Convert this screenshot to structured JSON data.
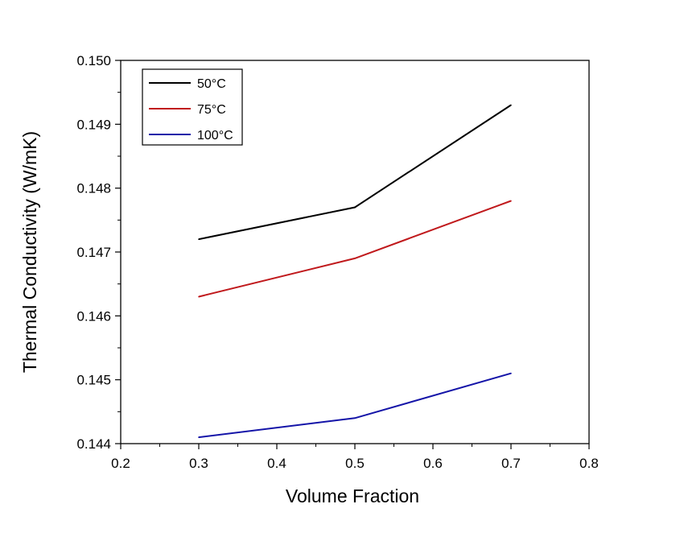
{
  "chart_data": {
    "type": "line",
    "title": "",
    "xlabel": "Volume Fraction",
    "ylabel": "Thermal Conductivity (W/mK)",
    "xlim": [
      0.2,
      0.8
    ],
    "ylim": [
      0.144,
      0.15
    ],
    "x_ticks": [
      "0.2",
      "0.3",
      "0.4",
      "0.5",
      "0.6",
      "0.7",
      "0.8"
    ],
    "y_ticks": [
      "0.144",
      "0.145",
      "0.146",
      "0.147",
      "0.148",
      "0.149",
      "0.150"
    ],
    "x": [
      0.3,
      0.5,
      0.7
    ],
    "series": [
      {
        "name": "50°C",
        "color": "#000000",
        "values": [
          0.1472,
          0.1477,
          0.1493
        ]
      },
      {
        "name": "75°C",
        "color": "#c0191c",
        "values": [
          0.1463,
          0.1469,
          0.1478
        ]
      },
      {
        "name": "100°C",
        "color": "#1414a8",
        "values": [
          0.1441,
          0.1444,
          0.1451
        ]
      }
    ],
    "grid": false,
    "legend_position": "top-left"
  }
}
